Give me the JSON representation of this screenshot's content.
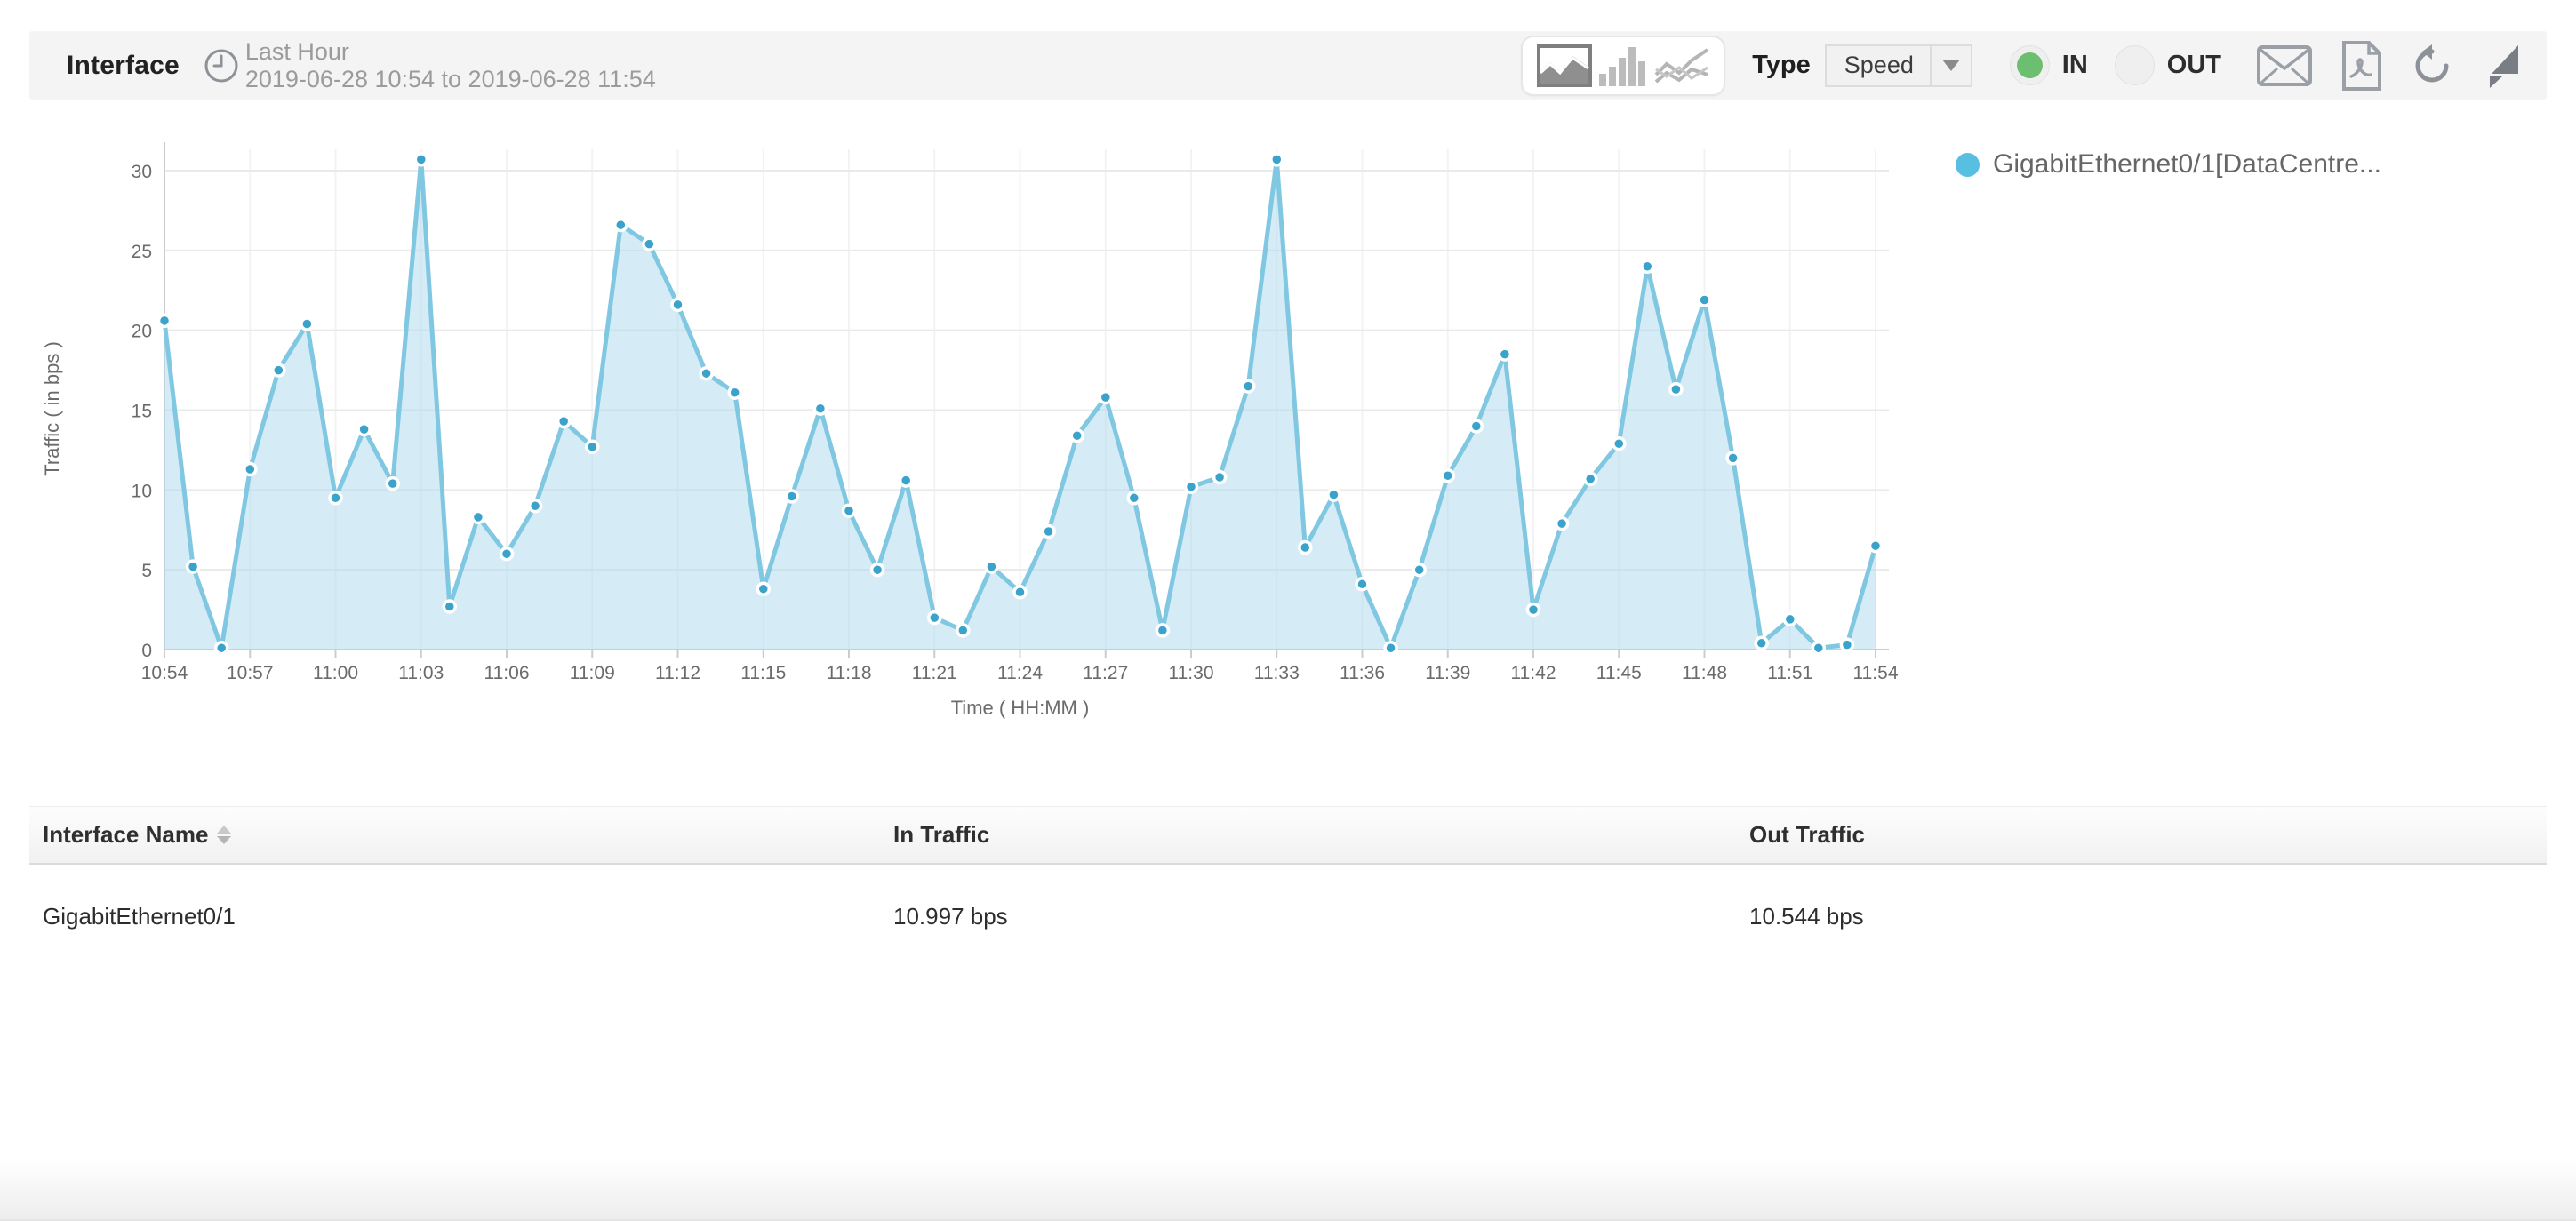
{
  "header": {
    "title": "Interface",
    "period_label": "Last Hour",
    "period_range": "2019-06-28 10:54 to 2019-06-28 11:54",
    "type_label": "Type",
    "type_value": "Speed",
    "direction_in": "IN",
    "direction_out": "OUT",
    "direction_selected": "IN",
    "accent_green": "#6cbf70",
    "chart_type_selected": "area"
  },
  "legend": {
    "label": "GigabitEthernet0/1[DataCentre...",
    "dot_color": "#57c0e2"
  },
  "chart_data": {
    "type": "area",
    "title": "",
    "xlabel": "Time ( HH:MM )",
    "ylabel": "Traffic ( in bps )",
    "ylim": [
      0,
      32
    ],
    "yticks": [
      0,
      5,
      10,
      15,
      20,
      25,
      30
    ],
    "grid": true,
    "legend_position": "right",
    "tick_every": 3,
    "x": [
      "10:54",
      "10:55",
      "10:56",
      "10:57",
      "10:58",
      "10:59",
      "11:00",
      "11:01",
      "11:02",
      "11:03",
      "11:04",
      "11:05",
      "11:06",
      "11:07",
      "11:08",
      "11:09",
      "11:10",
      "11:11",
      "11:12",
      "11:13",
      "11:14",
      "11:15",
      "11:16",
      "11:17",
      "11:18",
      "11:19",
      "11:20",
      "11:21",
      "11:22",
      "11:23",
      "11:24",
      "11:25",
      "11:26",
      "11:27",
      "11:28",
      "11:29",
      "11:30",
      "11:31",
      "11:32",
      "11:33",
      "11:34",
      "11:35",
      "11:36",
      "11:37",
      "11:38",
      "11:39",
      "11:40",
      "11:41",
      "11:42",
      "11:43",
      "11:44",
      "11:45",
      "11:46",
      "11:47",
      "11:48",
      "11:49",
      "11:50",
      "11:51",
      "11:52",
      "11:53",
      "11:54"
    ],
    "series": [
      {
        "name": "GigabitEthernet0/1[DataCentre...",
        "values": [
          20.6,
          5.2,
          0.1,
          11.3,
          17.5,
          20.4,
          9.5,
          13.8,
          10.4,
          30.7,
          2.7,
          8.3,
          6.0,
          9.0,
          14.3,
          12.7,
          26.6,
          25.4,
          21.6,
          17.3,
          16.1,
          3.8,
          9.6,
          15.1,
          8.7,
          5.0,
          10.6,
          2.0,
          1.2,
          5.2,
          3.6,
          7.4,
          13.4,
          15.8,
          9.5,
          1.2,
          10.2,
          10.8,
          16.5,
          30.7,
          6.4,
          9.7,
          4.1,
          0.1,
          5.0,
          10.9,
          14.0,
          18.5,
          2.5,
          7.9,
          10.7,
          12.9,
          24.0,
          16.3,
          21.9,
          12.0,
          0.4,
          1.9,
          0.1,
          0.3,
          6.5
        ]
      }
    ],
    "line_color": "#80c7e2",
    "fill_color": "rgba(172,218,239,0.5)",
    "marker_color": "#39a3cb",
    "axis_color": "#cccccc",
    "grid_color": "#eaeaea",
    "tick_label_color": "#6b6b6b"
  },
  "table": {
    "columns": [
      {
        "label": "Interface Name",
        "sortable": true
      },
      {
        "label": "In Traffic",
        "sortable": false
      },
      {
        "label": "Out Traffic",
        "sortable": false
      }
    ],
    "rows": [
      {
        "interface": "GigabitEthernet0/1",
        "in_traffic": "10.997 bps",
        "out_traffic": "10.544 bps"
      }
    ]
  }
}
